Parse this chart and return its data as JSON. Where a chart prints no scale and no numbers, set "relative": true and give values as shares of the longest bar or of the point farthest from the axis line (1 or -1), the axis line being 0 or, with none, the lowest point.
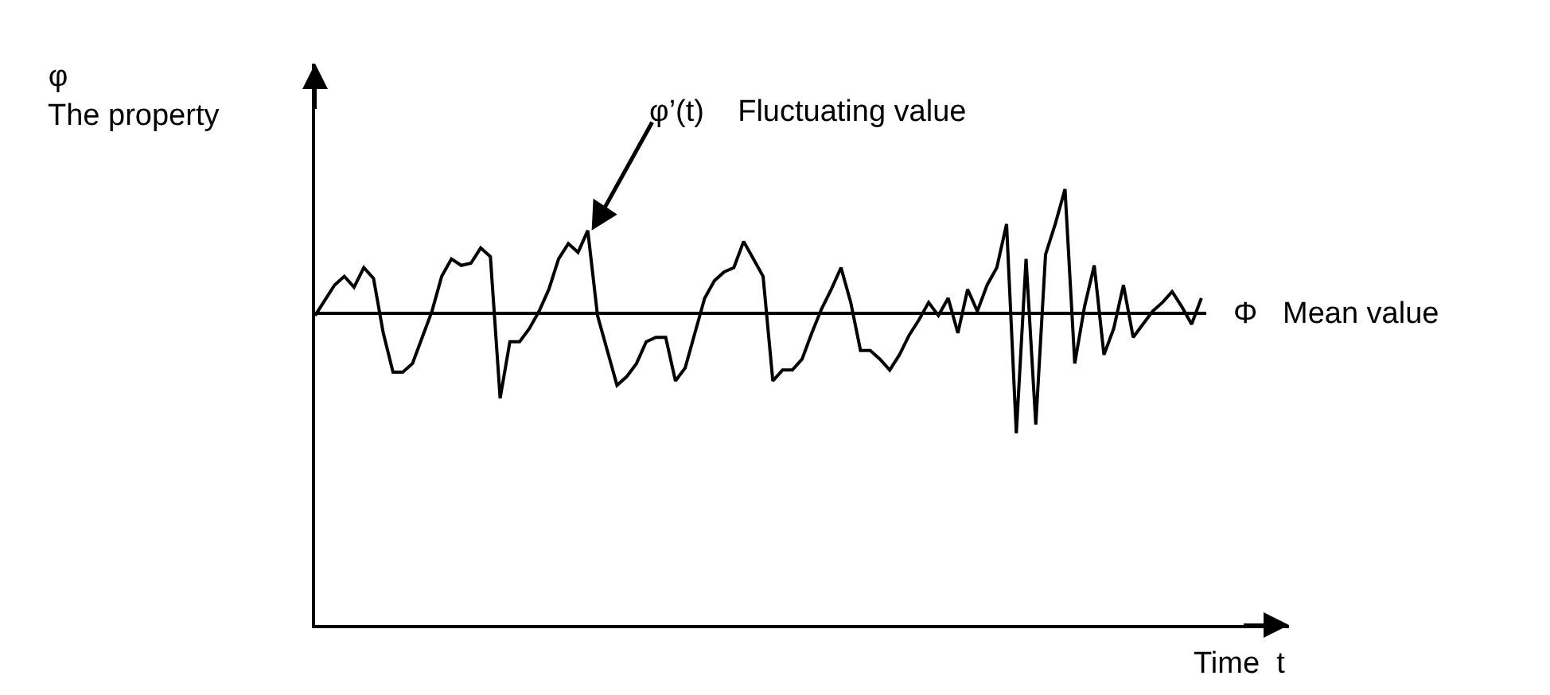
{
  "chart_data": {
    "type": "line",
    "relative": true,
    "ylabel": "φ\nThe property",
    "xlabel": "Time  t",
    "marker": "none",
    "line_style": "solid",
    "tick_labels": false,
    "categories": [
      null,
      null,
      null,
      null,
      null,
      null,
      null,
      null,
      null,
      null,
      null,
      null,
      null,
      null,
      null,
      null,
      null,
      null,
      null,
      null,
      null,
      null,
      null,
      null,
      null,
      null,
      null,
      null,
      null,
      null,
      null,
      null,
      null,
      null,
      null,
      null,
      null,
      null,
      null,
      null,
      null,
      null,
      null,
      null,
      null,
      null,
      null,
      null,
      null,
      null,
      null,
      null,
      null,
      null,
      null,
      null,
      null,
      null,
      null,
      null,
      null,
      null,
      null,
      null,
      null,
      null,
      null,
      null,
      null,
      null,
      null,
      null,
      null,
      null,
      null,
      null,
      null,
      null,
      null,
      null,
      null,
      null,
      null,
      null,
      null,
      null,
      null,
      null,
      null,
      null,
      null,
      null
    ],
    "series": [
      {
        "color": "#000000",
        "values": [
          0.71,
          0.745,
          0.78,
          0.8,
          0.775,
          0.82,
          0.795,
          0.67,
          0.58,
          0.58,
          0.6,
          0.66,
          0.72,
          0.8,
          0.84,
          0.825,
          0.83,
          0.865,
          0.845,
          0.52,
          0.65,
          0.65,
          0.68,
          0.72,
          0.77,
          0.84,
          0.875,
          0.855,
          0.905,
          0.71,
          0.63,
          0.55,
          0.57,
          0.6,
          0.65,
          0.66,
          0.66,
          0.56,
          0.59,
          0.67,
          0.75,
          0.79,
          0.81,
          0.82,
          0.88,
          0.84,
          0.8,
          0.56,
          0.585,
          0.585,
          0.61,
          0.67,
          0.725,
          0.77,
          0.82,
          0.74,
          0.63,
          0.63,
          0.61,
          0.585,
          0.62,
          0.665,
          0.7,
          0.74,
          0.71,
          0.75,
          0.67,
          0.77,
          0.72,
          0.78,
          0.82,
          0.92,
          0.44,
          0.84,
          0.46,
          0.85,
          0.92,
          1,
          0.6,
          0.73,
          0.825,
          0.62,
          0.68,
          0.78,
          0.66,
          0.69,
          0.72,
          0.74,
          0.765,
          0.73,
          0.69,
          0.75
        ]
      }
    ],
    "ref_lines": [
      {
        "axis": "y",
        "value": 0.715,
        "label": "Φ   Mean value",
        "color": "#000000",
        "line_style": "solid"
      }
    ],
    "annotations": [
      "φ’(t)    Fluctuating value"
    ]
  }
}
